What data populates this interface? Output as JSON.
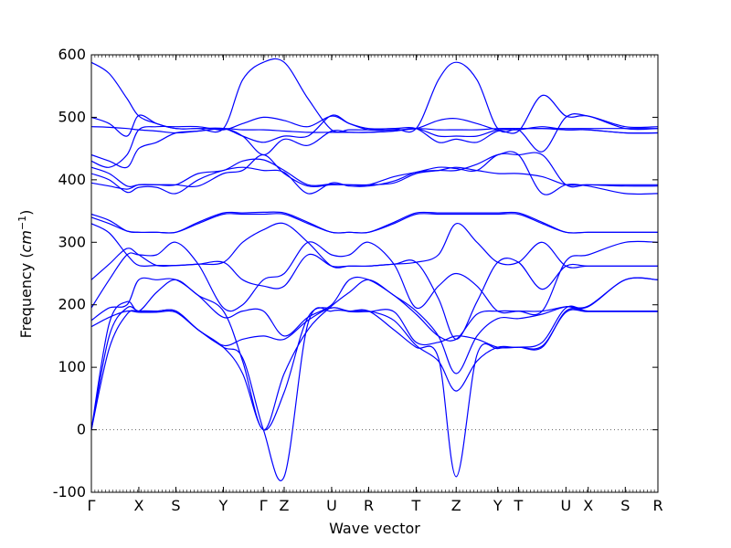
{
  "chart_data": {
    "type": "line",
    "xlabel": "Wave vector",
    "ylabel_prefix": "Frequency (",
    "ylabel_unit": "cm",
    "ylabel_exp": "−1",
    "ylabel_suffix": ")",
    "ylim": [
      -100,
      600
    ],
    "yticks": [
      -100,
      0,
      100,
      200,
      300,
      400,
      500,
      600
    ],
    "xlim": [
      0,
      19.1
    ],
    "high_symmetry_points": [
      {
        "label": "Γ",
        "x": 0.0
      },
      {
        "label": "X",
        "x": 1.6
      },
      {
        "label": "S",
        "x": 2.85
      },
      {
        "label": "Y",
        "x": 4.45
      },
      {
        "label": "Γ",
        "x": 5.8
      },
      {
        "label": "Z",
        "x": 6.5
      },
      {
        "label": "U",
        "x": 8.1
      },
      {
        "label": "R",
        "x": 9.35
      },
      {
        "label": "T",
        "x": 10.95
      },
      {
        "label": "Z",
        "x": 12.3
      },
      {
        "label": "Y",
        "x": 13.7
      },
      {
        "label": "T",
        "x": 14.4
      },
      {
        "label": "U",
        "x": 16.0
      },
      {
        "label": "X",
        "x": 16.75
      },
      {
        "label": "S",
        "x": 18.0
      },
      {
        "label": "R",
        "x": 19.1
      }
    ],
    "series": [
      {
        "x": [
          0,
          0.6,
          1.2,
          1.6,
          2.2,
          2.85,
          3.6,
          4.45,
          5.1,
          5.8,
          6.5,
          7.3,
          8.1,
          8.7,
          9.35,
          10.2,
          10.95,
          11.7,
          12.3,
          13.0,
          13.7,
          14.4,
          15.2,
          16.0,
          16.75,
          18.0,
          19.1
        ],
        "values": [
          0,
          130,
          185,
          190,
          190,
          190,
          160,
          132,
          115,
          0,
          -75,
          170,
          190,
          190,
          190,
          160,
          132,
          115,
          -75,
          120,
          130,
          132,
          132,
          190,
          190,
          190,
          190
        ]
      },
      {
        "x": [
          0,
          0.6,
          1.2,
          1.6,
          2.2,
          2.85,
          3.6,
          4.45,
          5.1,
          5.8,
          6.5,
          7.3,
          8.1,
          8.7,
          9.35,
          10.2,
          10.95,
          11.7,
          12.3,
          13.0,
          13.7,
          14.4,
          15.2,
          16.0,
          16.75,
          18.0,
          19.1
        ],
        "values": [
          0,
          150,
          195,
          190,
          190,
          190,
          160,
          132,
          90,
          0,
          60,
          180,
          195,
          190,
          190,
          175,
          135,
          110,
          62,
          110,
          132,
          132,
          140,
          195,
          190,
          190,
          190
        ]
      },
      {
        "x": [
          0,
          0.6,
          1.2,
          1.6,
          2.2,
          2.85,
          3.6,
          4.45,
          5.1,
          5.8,
          6.5,
          7.3,
          8.1,
          8.7,
          9.35,
          10.2,
          10.95,
          11.7,
          12.3,
          13.0,
          13.7,
          14.4,
          15.2,
          16.0,
          16.75,
          18.0,
          19.1
        ],
        "values": [
          0,
          170,
          205,
          190,
          220,
          240,
          215,
          190,
          110,
          0,
          90,
          160,
          198,
          220,
          240,
          215,
          190,
          150,
          90,
          150,
          178,
          178,
          185,
          197,
          198,
          240,
          240
        ]
      },
      {
        "x": [
          0,
          0.6,
          1.2,
          1.6,
          2.2,
          2.85,
          3.6,
          4.45,
          5.1,
          5.8,
          6.5,
          7.3,
          8.1,
          8.7,
          9.35,
          10.2,
          10.95,
          11.7,
          12.3,
          13.0,
          13.7,
          14.4,
          15.2,
          16.0,
          16.75,
          18.0,
          19.1
        ],
        "values": [
          165,
          180,
          190,
          188,
          188,
          188,
          160,
          135,
          145,
          150,
          145,
          175,
          195,
          189,
          189,
          189,
          140,
          140,
          150,
          145,
          132,
          132,
          134,
          188,
          189,
          189,
          189
        ]
      },
      {
        "x": [
          0,
          0.6,
          1.2,
          1.6,
          2.2,
          2.85,
          3.6,
          4.45,
          5.1,
          5.8,
          6.5,
          7.3,
          8.1,
          8.7,
          9.35,
          10.2,
          10.95,
          11.7,
          12.3,
          13.0,
          13.7,
          14.4,
          15.2,
          16.0,
          16.75,
          18.0,
          19.1
        ],
        "values": [
          175,
          195,
          200,
          240,
          240,
          240,
          215,
          180,
          190,
          190,
          150,
          180,
          200,
          240,
          240,
          215,
          185,
          150,
          145,
          185,
          190,
          190,
          190,
          197,
          197,
          240,
          240
        ]
      },
      {
        "x": [
          0,
          0.6,
          1.2,
          1.6,
          2.2,
          2.85,
          3.6,
          4.45,
          5.1,
          5.8,
          6.5,
          7.3,
          8.1,
          8.7,
          9.35,
          10.2,
          10.95,
          11.7,
          12.3,
          13.0,
          13.7,
          14.4,
          15.2,
          16.0,
          16.75,
          18.0,
          19.1
        ],
        "values": [
          195,
          240,
          280,
          280,
          280,
          300,
          265,
          195,
          200,
          240,
          250,
          300,
          280,
          280,
          300,
          265,
          195,
          230,
          250,
          230,
          190,
          190,
          190,
          270,
          280,
          300,
          300
        ]
      },
      {
        "x": [
          0,
          0.6,
          1.2,
          1.6,
          2.2,
          2.85,
          3.6,
          4.45,
          5.1,
          5.8,
          6.5,
          7.3,
          8.1,
          8.7,
          9.35,
          10.2,
          10.95,
          11.7,
          12.3,
          13.0,
          13.7,
          14.4,
          15.2,
          16.0,
          16.75,
          18.0,
          19.1
        ],
        "values": [
          240,
          265,
          290,
          280,
          263,
          263,
          265,
          268,
          240,
          230,
          230,
          280,
          262,
          262,
          262,
          265,
          268,
          210,
          145,
          205,
          268,
          268,
          225,
          262,
          262,
          262,
          262
        ]
      },
      {
        "x": [
          0,
          0.6,
          1.2,
          1.6,
          2.2,
          2.85,
          3.6,
          4.45,
          5.1,
          5.8,
          6.5,
          7.3,
          8.1,
          8.7,
          9.35,
          10.2,
          10.95,
          11.7,
          12.3,
          13.0,
          13.7,
          14.4,
          15.2,
          16.0,
          16.75,
          18.0,
          19.1
        ],
        "values": [
          330,
          315,
          280,
          263,
          263,
          263,
          265,
          268,
          300,
          320,
          330,
          300,
          262,
          262,
          262,
          265,
          268,
          280,
          330,
          300,
          268,
          268,
          300,
          262,
          262,
          262,
          262
        ]
      },
      {
        "x": [
          0,
          0.6,
          1.2,
          1.6,
          2.2,
          2.85,
          3.6,
          4.45,
          5.1,
          5.8,
          6.5,
          7.3,
          8.1,
          8.7,
          9.35,
          10.2,
          10.95,
          11.7,
          12.3,
          13.0,
          13.7,
          14.4,
          15.2,
          16.0,
          16.75,
          18.0,
          19.1
        ],
        "values": [
          340,
          330,
          318,
          316,
          316,
          316,
          330,
          345,
          345,
          345,
          345,
          330,
          316,
          316,
          316,
          330,
          345,
          345,
          345,
          345,
          345,
          345,
          330,
          316,
          316,
          316,
          316
        ]
      },
      {
        "x": [
          0,
          0.6,
          1.2,
          1.6,
          2.2,
          2.85,
          3.6,
          4.45,
          5.1,
          5.8,
          6.5,
          7.3,
          8.1,
          8.7,
          9.35,
          10.2,
          10.95,
          11.7,
          12.3,
          13.0,
          13.7,
          14.4,
          15.2,
          16.0,
          16.75,
          18.0,
          19.1
        ],
        "values": [
          345,
          335,
          318,
          316,
          316,
          316,
          332,
          347,
          347,
          348,
          347,
          332,
          316,
          316,
          316,
          332,
          347,
          347,
          347,
          347,
          347,
          347,
          332,
          316,
          316,
          316,
          316
        ]
      },
      {
        "x": [
          0,
          0.6,
          1.2,
          1.6,
          2.2,
          2.85,
          3.6,
          4.45,
          5.1,
          5.8,
          6.5,
          7.3,
          8.1,
          8.7,
          9.35,
          10.2,
          10.95,
          11.7,
          12.3,
          13.0,
          13.7,
          14.4,
          15.2,
          16.0,
          16.75,
          18.0,
          19.1
        ],
        "values": [
          395,
          390,
          385,
          392,
          392,
          392,
          390,
          410,
          415,
          440,
          410,
          390,
          392,
          392,
          392,
          395,
          410,
          415,
          420,
          415,
          410,
          410,
          405,
          392,
          392,
          390,
          390
        ]
      },
      {
        "x": [
          0,
          0.6,
          1.2,
          1.6,
          2.2,
          2.85,
          3.6,
          4.45,
          5.1,
          5.8,
          6.5,
          7.3,
          8.1,
          8.7,
          9.35,
          10.2,
          10.95,
          11.7,
          12.3,
          13.0,
          13.7,
          14.4,
          15.2,
          16.0,
          16.75,
          18.0,
          19.1
        ],
        "values": [
          410,
          400,
          380,
          388,
          388,
          378,
          400,
          415,
          420,
          415,
          412,
          378,
          395,
          390,
          390,
          398,
          412,
          415,
          415,
          425,
          440,
          440,
          378,
          392,
          390,
          378,
          378
        ]
      },
      {
        "x": [
          0,
          0.6,
          1.2,
          1.6,
          2.2,
          2.85,
          3.6,
          4.45,
          5.1,
          5.8,
          6.5,
          7.3,
          8.1,
          8.7,
          9.35,
          10.2,
          10.95,
          11.7,
          12.3,
          13.0,
          13.7,
          14.4,
          15.2,
          16.0,
          16.75,
          18.0,
          19.1
        ],
        "values": [
          420,
          410,
          390,
          392,
          392,
          392,
          410,
          415,
          430,
          432,
          415,
          392,
          393,
          392,
          392,
          405,
          412,
          420,
          418,
          415,
          440,
          440,
          440,
          392,
          392,
          392,
          392
        ]
      },
      {
        "x": [
          0,
          0.6,
          1.2,
          1.6,
          2.2,
          2.85,
          3.6,
          4.45,
          5.1,
          5.8,
          6.5,
          7.3,
          8.1,
          8.7,
          9.35,
          10.2,
          10.95,
          11.7,
          12.3,
          13.0,
          13.7,
          14.4,
          15.2,
          16.0,
          16.75,
          18.0,
          19.1
        ],
        "values": [
          440,
          430,
          420,
          450,
          460,
          475,
          478,
          482,
          470,
          440,
          465,
          455,
          478,
          476,
          476,
          478,
          482,
          470,
          470,
          470,
          480,
          480,
          485,
          480,
          480,
          475,
          475
        ]
      },
      {
        "x": [
          0,
          0.6,
          1.2,
          1.6,
          2.2,
          2.85,
          3.6,
          4.45,
          5.1,
          5.8,
          6.5,
          7.3,
          8.1,
          8.7,
          9.35,
          10.2,
          10.95,
          11.7,
          12.3,
          13.0,
          13.7,
          14.4,
          15.2,
          16.0,
          16.75,
          18.0,
          19.1
        ],
        "values": [
          430,
          420,
          440,
          480,
          485,
          485,
          485,
          480,
          490,
          500,
          495,
          485,
          502,
          490,
          480,
          480,
          482,
          495,
          498,
          490,
          480,
          480,
          445,
          500,
          502,
          485,
          485
        ]
      },
      {
        "x": [
          0,
          0.6,
          1.2,
          1.6,
          2.2,
          2.85,
          3.6,
          4.45,
          5.1,
          5.8,
          6.5,
          7.3,
          8.1,
          8.7,
          9.35,
          10.2,
          10.95,
          11.7,
          12.3,
          13.0,
          13.7,
          14.4,
          15.2,
          16.0,
          16.75,
          18.0,
          19.1
        ],
        "values": [
          485,
          484,
          482,
          480,
          478,
          475,
          478,
          482,
          480,
          480,
          478,
          476,
          476,
          476,
          476,
          478,
          482,
          480,
          480,
          480,
          482,
          482,
          482,
          480,
          480,
          475,
          475
        ]
      },
      {
        "x": [
          0,
          0.6,
          1.2,
          1.6,
          2.2,
          2.85,
          3.6,
          4.45,
          5.1,
          5.8,
          6.5,
          7.3,
          8.1,
          8.7,
          9.35,
          10.2,
          10.95,
          11.7,
          12.3,
          13.0,
          13.7,
          14.4,
          15.2,
          16.0,
          16.75,
          18.0,
          19.1
        ],
        "values": [
          500,
          490,
          470,
          503,
          490,
          482,
          482,
          482,
          470,
          460,
          470,
          470,
          503,
          490,
          482,
          482,
          482,
          460,
          465,
          460,
          478,
          478,
          535,
          502,
          502,
          482,
          482
        ]
      },
      {
        "x": [
          0,
          0.6,
          1.2,
          1.6,
          2.2,
          2.85,
          3.6,
          4.45,
          5.1,
          5.8,
          6.5,
          7.3,
          8.1,
          8.7,
          9.35,
          10.2,
          10.95,
          11.7,
          12.3,
          13.0,
          13.7,
          14.4,
          15.2,
          16.0,
          16.75,
          18.0,
          19.1
        ],
        "values": [
          588,
          570,
          530,
          502,
          490,
          482,
          482,
          482,
          560,
          588,
          588,
          530,
          480,
          480,
          480,
          482,
          482,
          560,
          588,
          560,
          482,
          482,
          482,
          482,
          482,
          482,
          482
        ]
      }
    ]
  }
}
